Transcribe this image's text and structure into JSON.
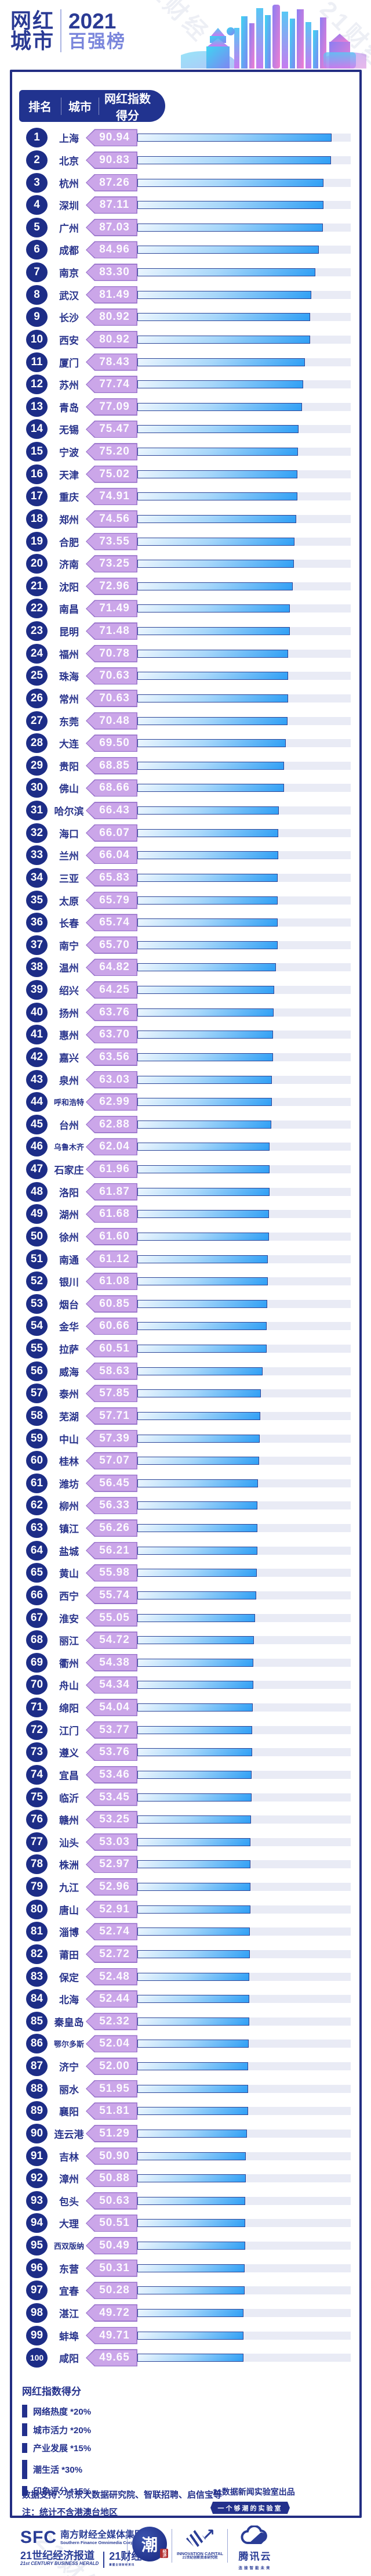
{
  "watermark_text": "21财经",
  "header": {
    "logo_line1": "网红",
    "logo_line2": "城市",
    "year": "2021",
    "title": "百强榜"
  },
  "table_header": {
    "rank": "排名",
    "city": "城市",
    "score": "网红指数得分"
  },
  "chart_data": {
    "type": "bar",
    "title": "2021网红城市百强榜",
    "xlabel": "网红指数得分",
    "xlim": [
      0,
      100
    ],
    "categories": [
      "上海",
      "北京",
      "杭州",
      "深圳",
      "广州",
      "成都",
      "南京",
      "武汉",
      "长沙",
      "西安",
      "厦门",
      "苏州",
      "青岛",
      "无锡",
      "宁波",
      "天津",
      "重庆",
      "郑州",
      "合肥",
      "济南",
      "沈阳",
      "南昌",
      "昆明",
      "福州",
      "珠海",
      "常州",
      "东莞",
      "大连",
      "贵阳",
      "佛山",
      "哈尔滨",
      "海口",
      "兰州",
      "三亚",
      "太原",
      "长春",
      "南宁",
      "温州",
      "绍兴",
      "扬州",
      "惠州",
      "嘉兴",
      "泉州",
      "呼和浩特",
      "台州",
      "乌鲁木齐",
      "石家庄",
      "洛阳",
      "湖州",
      "徐州",
      "南通",
      "银川",
      "烟台",
      "金华",
      "拉萨",
      "威海",
      "泰州",
      "芜湖",
      "中山",
      "桂林",
      "潍坊",
      "柳州",
      "镇江",
      "盐城",
      "黄山",
      "西宁",
      "淮安",
      "丽江",
      "衢州",
      "舟山",
      "绵阳",
      "江门",
      "遵义",
      "宜昌",
      "临沂",
      "赣州",
      "汕头",
      "株洲",
      "九江",
      "唐山",
      "淄博",
      "莆田",
      "保定",
      "北海",
      "秦皇岛",
      "鄂尔多斯",
      "济宁",
      "丽水",
      "襄阳",
      "连云港",
      "吉林",
      "漳州",
      "包头",
      "大理",
      "西双版纳",
      "东营",
      "宜春",
      "湛江",
      "蚌埠",
      "咸阳"
    ],
    "values": [
      "90.94",
      "90.83",
      "87.26",
      "87.11",
      "87.03",
      "84.96",
      "83.30",
      "81.49",
      "80.92",
      "80.92",
      "78.43",
      "77.74",
      "77.09",
      "75.47",
      "75.20",
      "75.02",
      "74.91",
      "74.56",
      "73.55",
      "73.25",
      "72.96",
      "71.49",
      "71.48",
      "70.78",
      "70.63",
      "70.63",
      "70.48",
      "69.50",
      "68.85",
      "68.66",
      "66.43",
      "66.07",
      "66.04",
      "65.83",
      "65.79",
      "65.74",
      "65.70",
      "64.82",
      "64.25",
      "63.76",
      "63.70",
      "63.56",
      "63.03",
      "62.99",
      "62.88",
      "62.04",
      "61.96",
      "61.87",
      "61.68",
      "61.60",
      "61.12",
      "61.08",
      "60.85",
      "60.66",
      "60.51",
      "58.63",
      "57.85",
      "57.71",
      "57.39",
      "57.07",
      "56.45",
      "56.33",
      "56.26",
      "56.21",
      "55.98",
      "55.74",
      "55.05",
      "54.72",
      "54.38",
      "54.34",
      "54.04",
      "53.77",
      "53.76",
      "53.46",
      "53.45",
      "53.25",
      "53.03",
      "52.97",
      "52.96",
      "52.91",
      "52.74",
      "52.72",
      "52.48",
      "52.44",
      "52.32",
      "52.04",
      "52.00",
      "51.95",
      "51.81",
      "51.29",
      "50.90",
      "50.88",
      "50.63",
      "50.51",
      "50.49",
      "50.31",
      "50.28",
      "49.72",
      "49.71",
      "49.65"
    ]
  },
  "legend": {
    "title": "网红指数得分",
    "items": [
      {
        "label": "网络热度 *20%",
        "weight": 20
      },
      {
        "label": "城市活力 *20%",
        "weight": 20
      },
      {
        "label": "产业发展 *15%",
        "weight": 15
      },
      {
        "label": "潮生活 *30%",
        "weight": 30
      },
      {
        "label": "印象评分 *15%",
        "weight": 15
      }
    ]
  },
  "notes": {
    "support": "数据支持：京东大数据研究院、智联招聘、启信宝等",
    "scope": "注：统计不含港澳台地区"
  },
  "credits": {
    "producer": "21数据新闻实验室出品",
    "tagline": "一个够潮的实验室"
  },
  "footer": {
    "sfc_letters": "SFC",
    "sfc_cn": "南方财经全媒体集团",
    "sfc_en": "Southern Finance Omnimedia Corp.",
    "herald_cn": "21世纪经济报道",
    "herald_en": "21st CENTURY BUSINESS HERALD",
    "app_name": "21财经",
    "app_tag": "掌握全球财经资讯",
    "chao_char": "潮",
    "chao_badge": "经济",
    "ic_en": "INNOVATION CAPITAL",
    "ic_cn": "21世纪创新资本研究院",
    "cloud_name": "腾讯云",
    "cloud_tag": "连接智能未来"
  }
}
